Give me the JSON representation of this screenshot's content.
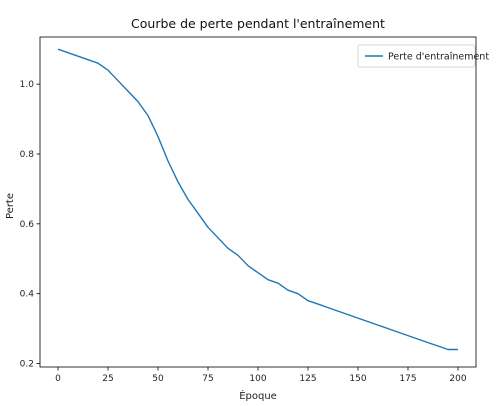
{
  "chart_data": {
    "type": "line",
    "title": "Courbe de perte pendant l'entraînement",
    "xlabel": "Époque",
    "ylabel": "Perte",
    "xlim": [
      -9,
      209
    ],
    "ylim": [
      0.19,
      1.135
    ],
    "x_ticks": [
      0,
      25,
      50,
      75,
      100,
      125,
      150,
      175,
      200
    ],
    "y_ticks": [
      0.2,
      0.4,
      0.6,
      0.8,
      1.0
    ],
    "y_tick_labels": [
      "0.2",
      "0.4",
      "0.6",
      "0.8",
      "1.0"
    ],
    "grid": false,
    "legend_position": "top-right",
    "series": [
      {
        "name": "Perte d'entraînement",
        "color": "#1f77b4",
        "x": [
          0,
          5,
          10,
          15,
          20,
          25,
          30,
          35,
          40,
          45,
          50,
          55,
          60,
          65,
          70,
          75,
          80,
          85,
          90,
          95,
          100,
          105,
          110,
          115,
          120,
          125,
          130,
          135,
          140,
          145,
          150,
          155,
          160,
          165,
          170,
          175,
          180,
          185,
          190,
          195,
          200
        ],
        "values": [
          1.1,
          1.09,
          1.08,
          1.07,
          1.06,
          1.04,
          1.01,
          0.98,
          0.95,
          0.91,
          0.85,
          0.78,
          0.72,
          0.67,
          0.63,
          0.59,
          0.56,
          0.53,
          0.51,
          0.48,
          0.46,
          0.44,
          0.43,
          0.41,
          0.4,
          0.38,
          0.37,
          0.36,
          0.35,
          0.34,
          0.33,
          0.32,
          0.31,
          0.3,
          0.29,
          0.28,
          0.27,
          0.26,
          0.25,
          0.24,
          0.24
        ]
      }
    ]
  }
}
